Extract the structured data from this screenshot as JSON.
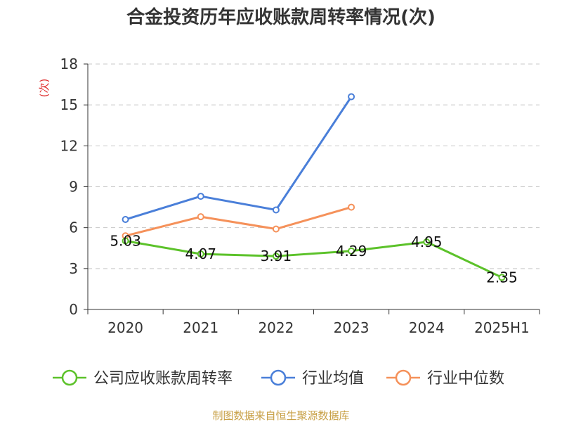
{
  "title": "合金投资历年应收账款周转率情况(次)",
  "source": "制图数据来自恒生聚源数据库",
  "chart_data": {
    "type": "line",
    "title": "合金投资历年应收账款周转率情况(次)",
    "ylabel": "(次)",
    "xlabel": "",
    "categories": [
      "2020",
      "2021",
      "2022",
      "2023",
      "2024",
      "2025H1"
    ],
    "ylim": [
      0,
      18
    ],
    "yticks": [
      0,
      3,
      6,
      9,
      12,
      15,
      18
    ],
    "grid": true,
    "legend_position": "bottom",
    "series": [
      {
        "name": "公司应收账款周转率",
        "color": "#5cc22a",
        "values": [
          5.03,
          4.07,
          3.91,
          4.29,
          4.95,
          2.35
        ],
        "labels": [
          "5.03",
          "4.07",
          "3.91",
          "4.29",
          "4.95",
          "2.35"
        ]
      },
      {
        "name": "行业均值",
        "color": "#4a7fd9",
        "values": [
          6.6,
          8.3,
          7.3,
          15.6,
          null,
          null
        ]
      },
      {
        "name": "行业中位数",
        "color": "#f5915a",
        "values": [
          5.4,
          6.8,
          5.9,
          7.5,
          null,
          null
        ]
      }
    ]
  }
}
